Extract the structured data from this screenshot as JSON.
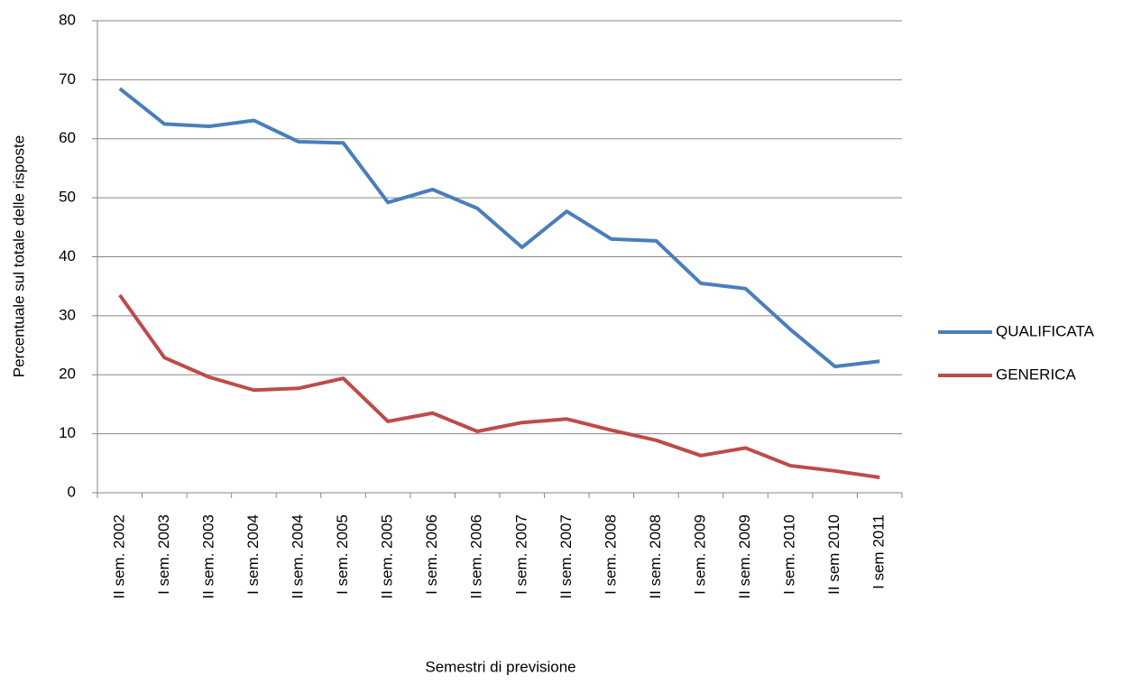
{
  "chart_data": {
    "type": "line",
    "x_label": "Semestri di previsione",
    "y_label": "Percentuale sul totale delle risposte",
    "categories": [
      "II sem. 2002",
      "I sem. 2003",
      "II sem. 2003",
      "I sem. 2004",
      "II sem. 2004",
      "I sem. 2005",
      "II sem. 2005",
      "I sem. 2006",
      "II sem. 2006",
      "I sem. 2007",
      "II sem. 2007",
      "I sem. 2008",
      "II sem. 2008",
      "I sem. 2009",
      "II sem. 2009",
      "I sem. 2010",
      "II sem 2010",
      "I sem 2011"
    ],
    "series": [
      {
        "name": "QUALIFICATA",
        "color": "#4a7ebb",
        "values": [
          68.5,
          62.5,
          62.1,
          63.1,
          59.5,
          59.3,
          49.2,
          51.4,
          48.2,
          41.6,
          47.7,
          43.0,
          42.7,
          35.5,
          34.6,
          27.7,
          21.4,
          22.3
        ]
      },
      {
        "name": "GENERICA",
        "color": "#be4b48",
        "values": [
          33.5,
          22.9,
          19.6,
          17.4,
          17.7,
          19.4,
          12.1,
          13.5,
          10.4,
          11.9,
          12.5,
          10.6,
          8.9,
          6.3,
          7.6,
          4.6,
          3.7,
          2.6
        ]
      }
    ],
    "ylim": [
      0,
      80
    ],
    "yticks": [
      0,
      10,
      20,
      30,
      40,
      50,
      60,
      70,
      80
    ],
    "grid": true,
    "legend": "right"
  }
}
